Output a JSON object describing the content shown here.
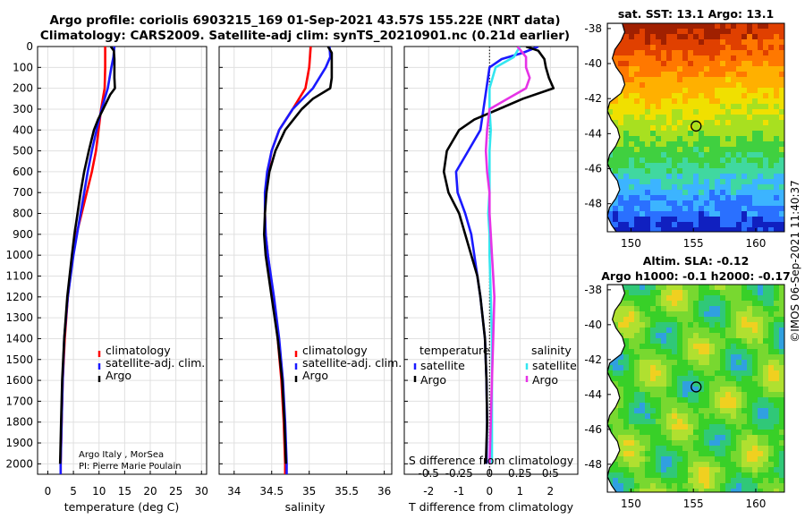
{
  "title_line1": "Argo profile: coriolis 6903215_169 01-Sep-2021 43.57S 155.22E (NRT data)",
  "title_line2": "Climatology: CARS2009. Satellite-adj clim: synTS_20210901.nc (0.21d earlier)",
  "colors": {
    "red": "#ff0000",
    "blue": "#1a1aff",
    "black": "#000000",
    "cyan": "#33e6f0",
    "magenta": "#e633e6"
  },
  "credit": {
    "line1": "Argo Italy , MorSea",
    "line2": "PI: Pierre Marie Poulain"
  },
  "timestamp": "©IMOS 06-Sep-2021 11:40:37",
  "chart_data": [
    {
      "type": "line",
      "id": "temperature",
      "xlabel": "temperature (deg C)",
      "ylabel": "",
      "xlim": [
        -2,
        31
      ],
      "ylim": [
        0,
        2050
      ],
      "xticks": [
        0,
        5,
        10,
        15,
        20,
        25,
        30
      ],
      "yticks": [
        0,
        100,
        200,
        300,
        400,
        500,
        600,
        700,
        800,
        900,
        1000,
        1100,
        1200,
        1300,
        1400,
        1500,
        1600,
        1700,
        1800,
        1900,
        2000
      ],
      "grid": true,
      "legend": [
        "climatology",
        "satellite-adj. clim.",
        "Argo"
      ],
      "series": [
        {
          "name": "climatology",
          "color": "red",
          "depth": [
            0,
            100,
            200,
            300,
            400,
            500,
            600,
            700,
            800,
            900,
            1000,
            1200,
            1400,
            1600,
            1800,
            2000,
            2050
          ],
          "values": [
            11.2,
            11.2,
            11.1,
            10.4,
            9.9,
            9.4,
            8.6,
            7.6,
            6.6,
            5.6,
            4.9,
            3.9,
            3.3,
            2.9,
            2.7,
            2.5,
            2.5
          ]
        },
        {
          "name": "satellite-adj. clim.",
          "color": "blue",
          "depth": [
            0,
            50,
            100,
            200,
            300,
            400,
            500,
            600,
            700,
            800,
            900,
            1000,
            1200,
            1400,
            1600,
            1800,
            2000,
            2050
          ],
          "values": [
            13.0,
            12.8,
            12.4,
            11.7,
            10.5,
            9.5,
            8.6,
            7.8,
            7.1,
            6.4,
            5.7,
            5.0,
            3.9,
            3.2,
            2.9,
            2.7,
            2.5,
            2.5
          ]
        },
        {
          "name": "Argo",
          "color": "black",
          "depth": [
            0,
            20,
            60,
            100,
            150,
            200,
            230,
            300,
            350,
            400,
            500,
            600,
            700,
            800,
            900,
            1000,
            1200,
            1400,
            1600,
            1800,
            2000
          ],
          "values": [
            12.3,
            12.9,
            13.0,
            13.0,
            13.0,
            13.1,
            12.2,
            10.8,
            9.8,
            9.0,
            8.0,
            7.1,
            6.4,
            5.8,
            5.2,
            4.7,
            3.8,
            3.2,
            2.8,
            2.6,
            2.4
          ]
        }
      ]
    },
    {
      "type": "line",
      "id": "salinity",
      "xlabel": "salinity",
      "ylabel": "",
      "xlim": [
        33.8,
        36.1
      ],
      "ylim": [
        0,
        2050
      ],
      "xticks": [
        34,
        34.5,
        35,
        35.5,
        36
      ],
      "xtick_labels": [
        "34",
        "34.5",
        "35",
        "35.5",
        "36"
      ],
      "grid": true,
      "legend": [
        "climatology",
        "satellite-adj. clim.",
        "Argo"
      ],
      "series": [
        {
          "name": "climatology",
          "color": "red",
          "depth": [
            0,
            100,
            200,
            300,
            400,
            500,
            600,
            700,
            800,
            900,
            1000,
            1200,
            1400,
            1600,
            1800,
            2000,
            2050
          ],
          "values": [
            35.02,
            35.0,
            34.95,
            34.78,
            34.6,
            34.5,
            34.45,
            34.42,
            34.41,
            34.42,
            34.45,
            34.52,
            34.58,
            34.63,
            34.66,
            34.68,
            34.68
          ]
        },
        {
          "name": "satellite-adj. clim.",
          "color": "blue",
          "depth": [
            0,
            50,
            100,
            200,
            300,
            400,
            500,
            600,
            700,
            800,
            900,
            1000,
            1200,
            1400,
            1600,
            1800,
            2000,
            2050
          ],
          "values": [
            35.27,
            35.28,
            35.22,
            35.05,
            34.78,
            34.6,
            34.5,
            34.44,
            34.41,
            34.41,
            34.42,
            34.45,
            34.53,
            34.6,
            34.65,
            34.68,
            34.7,
            34.7
          ]
        },
        {
          "name": "Argo",
          "color": "black",
          "depth": [
            0,
            30,
            80,
            150,
            200,
            250,
            300,
            400,
            500,
            600,
            700,
            800,
            900,
            1000,
            1200,
            1400,
            1600,
            1800,
            2000
          ],
          "values": [
            35.25,
            35.3,
            35.3,
            35.3,
            35.28,
            35.05,
            34.9,
            34.68,
            34.55,
            34.47,
            34.43,
            34.41,
            34.4,
            34.42,
            34.5,
            34.58,
            34.64,
            34.67,
            34.69
          ]
        }
      ]
    },
    {
      "type": "line",
      "id": "differences",
      "xlabel": "T difference from climatology",
      "xlabel_top": "S difference from climatology",
      "xlim": [
        -2.8,
        2.9
      ],
      "ylim": [
        0,
        2050
      ],
      "xticks": [
        -2,
        -1,
        0,
        1,
        2
      ],
      "xtick_labels": [
        "-2",
        "-1",
        "0",
        "1",
        "2"
      ],
      "sticks": [
        -0.5,
        -0.25,
        0,
        0.25,
        0.5
      ],
      "stick_labels": [
        "-0.5",
        "-0.25",
        "0",
        "0.25",
        "0.5"
      ],
      "s_scale": 4,
      "grid": true,
      "legend_left_title": "temperature",
      "legend_right_title": "salinity",
      "legend_left": [
        "satellite",
        "Argo"
      ],
      "legend_right": [
        "satellite",
        "Argo"
      ],
      "series": [
        {
          "name": "temperature satellite",
          "color": "blue",
          "depth": [
            0,
            30,
            60,
            100,
            200,
            300,
            400,
            500,
            600,
            700,
            800,
            900,
            1000,
            1200,
            1400,
            1600,
            1800,
            2000
          ],
          "values": [
            1.6,
            1.1,
            0.4,
            0.0,
            -0.1,
            -0.2,
            -0.3,
            -0.7,
            -1.1,
            -1.05,
            -0.8,
            -0.6,
            -0.5,
            -0.3,
            -0.15,
            -0.1,
            -0.08,
            -0.1
          ]
        },
        {
          "name": "temperature Argo",
          "color": "black",
          "depth": [
            0,
            20,
            60,
            100,
            150,
            200,
            250,
            300,
            350,
            400,
            500,
            600,
            700,
            800,
            900,
            1000,
            1100,
            1200,
            1400,
            1600,
            1800,
            2000
          ],
          "values": [
            1.2,
            1.6,
            1.8,
            1.85,
            1.95,
            2.1,
            1.1,
            0.3,
            -0.5,
            -1.0,
            -1.4,
            -1.5,
            -1.35,
            -1.0,
            -0.8,
            -0.6,
            -0.4,
            -0.3,
            -0.15,
            -0.1,
            -0.08,
            -0.12
          ]
        },
        {
          "name": "salinity satellite",
          "color": "cyan",
          "depth": [
            0,
            50,
            100,
            200,
            300,
            400,
            500,
            600,
            700,
            800,
            900,
            1000,
            1200,
            1400,
            1600,
            1800,
            2000
          ],
          "values": [
            0.25,
            0.2,
            0.05,
            0.0,
            0.0,
            0.01,
            0.0,
            0.0,
            0.0,
            -0.01,
            0.0,
            0.0,
            0.01,
            0.02,
            0.02,
            0.02,
            0.02
          ]
        },
        {
          "name": "salinity Argo",
          "color": "magenta",
          "depth": [
            0,
            50,
            100,
            150,
            200,
            250,
            300,
            400,
            500,
            600,
            700,
            800,
            900,
            1000,
            1100,
            1200,
            1400,
            1600,
            1800,
            2000
          ],
          "values": [
            0.23,
            0.3,
            0.3,
            0.33,
            0.3,
            0.15,
            0.0,
            -0.02,
            -0.03,
            -0.02,
            0.0,
            0.0,
            0.01,
            0.02,
            0.03,
            0.04,
            0.03,
            0.02,
            0.01,
            0.0
          ]
        }
      ]
    },
    {
      "type": "heatmap",
      "id": "sst_map",
      "title": "sat. SST: 13.1 Argo: 13.1",
      "xlim": [
        148.1,
        162.3
      ],
      "ylim": [
        -49.6,
        -37.7
      ],
      "xticks": [
        150,
        155,
        160
      ],
      "yticks": [
        -38,
        -40,
        -42,
        -44,
        -46,
        -48
      ],
      "marker": {
        "lon": 155.22,
        "lat": -43.57
      }
    },
    {
      "type": "heatmap",
      "id": "sla_map",
      "title_line1": "Altim. SLA: -0.12",
      "title_line2": "Argo h1000: -0.1 h2000: -0.17",
      "xlim": [
        148.1,
        162.3
      ],
      "ylim": [
        -49.6,
        -37.7
      ],
      "xticks": [
        150,
        155,
        160
      ],
      "yticks": [
        -38,
        -40,
        -42,
        -44,
        -46,
        -48
      ],
      "marker": {
        "lon": 155.22,
        "lat": -43.57
      }
    }
  ]
}
